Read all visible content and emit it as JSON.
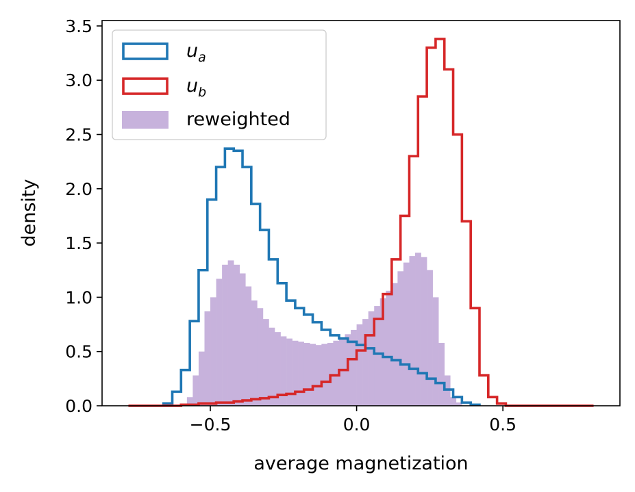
{
  "chart_data": {
    "type": "histogram",
    "title": "",
    "xlabel": "average magnetization",
    "ylabel": "density",
    "xlim": [
      -0.87,
      0.9
    ],
    "ylim": [
      0.0,
      3.55
    ],
    "xticks": [
      -0.5,
      0.0,
      0.5
    ],
    "xtick_labels": [
      "−0.5",
      "0.0",
      "0.5"
    ],
    "yticks": [
      0.0,
      0.5,
      1.0,
      1.5,
      2.0,
      2.5,
      3.0,
      3.5
    ],
    "ytick_labels": [
      "0.0",
      "0.5",
      "1.0",
      "1.5",
      "2.0",
      "2.5",
      "3.0",
      "3.5"
    ],
    "legend_position": "upper-left",
    "colors": {
      "u_a": "#1f77b4",
      "u_b": "#d62728",
      "reweighted": "#c7b2dc"
    },
    "legend": [
      {
        "key": "u_a",
        "label": "u",
        "subscript": "a",
        "style": "step"
      },
      {
        "key": "u_b",
        "label": "u",
        "subscript": "b",
        "style": "step"
      },
      {
        "key": "reweighted",
        "label": "reweighted",
        "subscript": "",
        "style": "filled"
      }
    ],
    "series": [
      {
        "name": "u_a",
        "style": "step",
        "bin_start": -0.66,
        "bin_width": 0.03,
        "values": [
          0.02,
          0.13,
          0.33,
          0.78,
          1.25,
          1.9,
          2.2,
          2.37,
          2.35,
          2.2,
          1.86,
          1.62,
          1.35,
          1.13,
          0.97,
          0.9,
          0.84,
          0.77,
          0.7,
          0.65,
          0.62,
          0.59,
          0.56,
          0.53,
          0.48,
          0.45,
          0.42,
          0.38,
          0.34,
          0.3,
          0.25,
          0.21,
          0.15,
          0.08,
          0.03,
          0.01
        ]
      },
      {
        "name": "u_b",
        "style": "step",
        "bin_start": -0.78,
        "bin_width": 0.03,
        "values": [
          0.0,
          0.0,
          0.0,
          0.0,
          0.0,
          0.0,
          0.01,
          0.01,
          0.02,
          0.02,
          0.03,
          0.03,
          0.04,
          0.05,
          0.06,
          0.07,
          0.08,
          0.1,
          0.11,
          0.13,
          0.15,
          0.18,
          0.22,
          0.28,
          0.33,
          0.43,
          0.51,
          0.65,
          0.8,
          1.03,
          1.35,
          1.75,
          2.3,
          2.85,
          3.3,
          3.38,
          3.1,
          2.5,
          1.7,
          0.9,
          0.28,
          0.08,
          0.02,
          0.0,
          0.0,
          0.0,
          0.0,
          0.0,
          0.0,
          0.0,
          0.0,
          0.0,
          0.0
        ]
      },
      {
        "name": "reweighted",
        "style": "filled",
        "bin_start": -0.6,
        "bin_width": 0.02,
        "values": [
          0.02,
          0.08,
          0.28,
          0.5,
          0.87,
          1.0,
          1.17,
          1.3,
          1.34,
          1.3,
          1.22,
          1.1,
          0.97,
          0.9,
          0.8,
          0.72,
          0.68,
          0.64,
          0.62,
          0.6,
          0.59,
          0.58,
          0.57,
          0.56,
          0.57,
          0.58,
          0.6,
          0.62,
          0.66,
          0.7,
          0.75,
          0.8,
          0.87,
          0.92,
          0.99,
          1.06,
          1.13,
          1.24,
          1.32,
          1.38,
          1.41,
          1.37,
          1.25,
          1.0,
          0.58,
          0.28,
          0.08,
          0.03
        ]
      }
    ]
  }
}
